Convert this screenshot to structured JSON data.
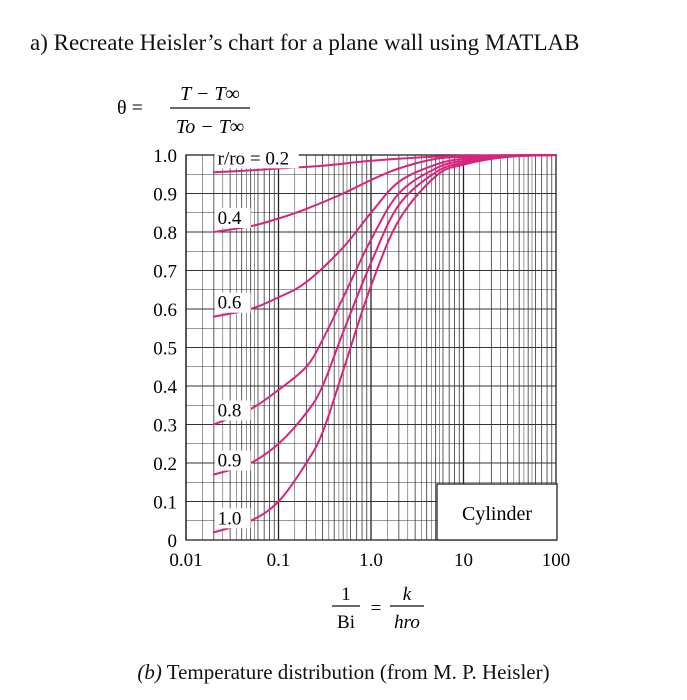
{
  "question_title": "a) Recreate Heisler’s chart for a plane wall using MATLAB",
  "caption_prefix": "(b)",
  "caption_text": "Temperature distribution (from M. P. Heisler)",
  "formula": {
    "lhs": "θ =",
    "numerator": "T − T∞",
    "denominator": "To − T∞",
    "xlabel_num": "1",
    "xlabel_den": "Bi",
    "xlabel_eq": "=",
    "xlabel_rhs_num": "k",
    "xlabel_rhs_den": "hro"
  },
  "chart_data": {
    "type": "line",
    "x_scale": "log",
    "xlim": [
      0.01,
      100
    ],
    "ylim": [
      0,
      1.0
    ],
    "x_ticks": [
      "0.01",
      "0.1",
      "1.0",
      "10",
      "100"
    ],
    "y_ticks": [
      "0",
      "0.1",
      "0.2",
      "0.3",
      "0.4",
      "0.5",
      "0.6",
      "0.7",
      "0.8",
      "0.9",
      "1.0"
    ],
    "grid": true,
    "line_color": "#d6247f",
    "legend_box": "Cylinder",
    "series": [
      {
        "name": "r/ro = 0.2",
        "x": [
          0.02,
          0.05,
          0.1,
          0.3,
          1.0,
          3.0,
          10,
          100
        ],
        "y": [
          0.955,
          0.96,
          0.965,
          0.972,
          0.985,
          0.993,
          0.998,
          1.0
        ]
      },
      {
        "name": "0.4",
        "x": [
          0.02,
          0.05,
          0.1,
          0.2,
          0.5,
          1.0,
          2.0,
          5.0,
          10,
          30,
          100
        ],
        "y": [
          0.8,
          0.815,
          0.835,
          0.86,
          0.9,
          0.935,
          0.965,
          0.99,
          0.995,
          0.999,
          1.0
        ]
      },
      {
        "name": "0.6",
        "x": [
          0.02,
          0.05,
          0.1,
          0.2,
          0.5,
          1.0,
          2.0,
          5.0,
          10,
          30,
          100
        ],
        "y": [
          0.58,
          0.6,
          0.63,
          0.67,
          0.76,
          0.85,
          0.93,
          0.975,
          0.99,
          0.998,
          1.0
        ]
      },
      {
        "name": "0.8",
        "x": [
          0.02,
          0.05,
          0.1,
          0.2,
          0.3,
          0.5,
          1.0,
          2.0,
          5.0,
          10,
          30,
          100
        ],
        "y": [
          0.3,
          0.34,
          0.39,
          0.45,
          0.52,
          0.63,
          0.78,
          0.9,
          0.965,
          0.985,
          0.997,
          1.0
        ]
      },
      {
        "name": "0.9",
        "x": [
          0.02,
          0.05,
          0.1,
          0.2,
          0.3,
          0.5,
          1.0,
          2.0,
          5.0,
          10,
          30,
          100
        ],
        "y": [
          0.17,
          0.2,
          0.25,
          0.33,
          0.4,
          0.54,
          0.72,
          0.87,
          0.955,
          0.98,
          0.996,
          1.0
        ]
      },
      {
        "name": "1.0",
        "x": [
          0.02,
          0.05,
          0.1,
          0.2,
          0.3,
          0.5,
          1.0,
          2.0,
          5.0,
          10,
          30,
          100
        ],
        "y": [
          0.02,
          0.05,
          0.1,
          0.2,
          0.28,
          0.44,
          0.66,
          0.83,
          0.945,
          0.975,
          0.995,
          1.0
        ]
      }
    ]
  }
}
